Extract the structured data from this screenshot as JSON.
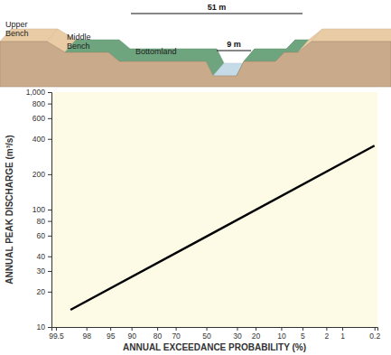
{
  "chart_data": {
    "type": "line",
    "x": [
      99,
      50,
      0.2
    ],
    "values": [
      14,
      59,
      350
    ],
    "color": "#000000",
    "xlabel": "ANNUAL EXCEEDANCE PROBABILITY (%)",
    "ylabel": "ANNUAL PEAK DISCHARGE (m³/s)",
    "xlim": [
      99.6,
      0.17
    ],
    "xticks": [
      99.5,
      98,
      95,
      90,
      80,
      70,
      50,
      30,
      20,
      10,
      5,
      2,
      1,
      0.2
    ],
    "ylim": [
      10,
      1000
    ],
    "yticks": [
      10,
      20,
      30,
      40,
      60,
      80,
      100,
      200,
      400,
      600,
      800,
      {
        "value": 1000,
        "label": "1,000"
      }
    ],
    "log": "y",
    "grid": false
  },
  "diagram": {
    "labels": [
      "Upper Bench",
      "Middle Bench",
      "Bottomland"
    ],
    "dimensions": [
      "51 m",
      "9 m"
    ]
  }
}
